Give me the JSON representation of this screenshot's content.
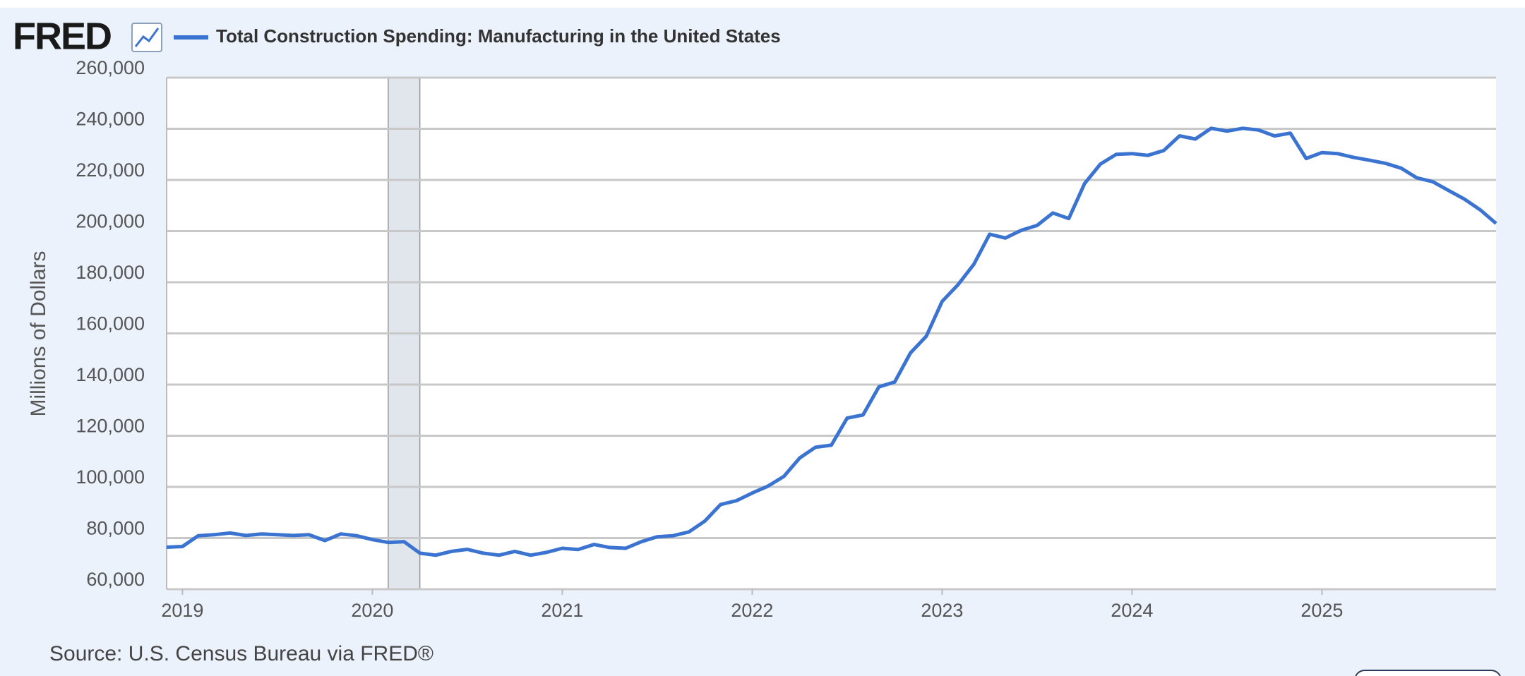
{
  "logo": "FRED",
  "chart_data": {
    "type": "line",
    "y_label": "Millions of Dollars",
    "source": "Source: U.S. Census Bureau via FRED®",
    "x": [
      "2018-12",
      "2019-01",
      "2019-02",
      "2019-03",
      "2019-04",
      "2019-05",
      "2019-06",
      "2019-07",
      "2019-08",
      "2019-09",
      "2019-10",
      "2019-11",
      "2019-12",
      "2020-01",
      "2020-02",
      "2020-03",
      "2020-04",
      "2020-05",
      "2020-06",
      "2020-07",
      "2020-08",
      "2020-09",
      "2020-10",
      "2020-11",
      "2020-12",
      "2021-01",
      "2021-02",
      "2021-03",
      "2021-04",
      "2021-05",
      "2021-06",
      "2021-07",
      "2021-08",
      "2021-09",
      "2021-10",
      "2021-11",
      "2021-12",
      "2022-01",
      "2022-02",
      "2022-03",
      "2022-04",
      "2022-05",
      "2022-06",
      "2022-07",
      "2022-08",
      "2022-09",
      "2022-10",
      "2022-11",
      "2022-12",
      "2023-01",
      "2023-02",
      "2023-03",
      "2023-04",
      "2023-05",
      "2023-06",
      "2023-07",
      "2023-08",
      "2023-09",
      "2023-10",
      "2023-11",
      "2023-12",
      "2024-01",
      "2024-02",
      "2024-03",
      "2024-04",
      "2024-05",
      "2024-06",
      "2024-07",
      "2024-08",
      "2024-09",
      "2024-10",
      "2024-11",
      "2024-12",
      "2025-01",
      "2025-02",
      "2025-03",
      "2025-04",
      "2025-05",
      "2025-06",
      "2025-07",
      "2025-08",
      "2025-09",
      "2025-10",
      "2025-11",
      "2025-12"
    ],
    "series": [
      {
        "name": "Total Construction Spending: Manufacturing in the United States",
        "color": "#3b73d0",
        "values": [
          76400,
          76700,
          80900,
          81300,
          82000,
          81000,
          81600,
          81300,
          81000,
          81300,
          79000,
          81600,
          80900,
          79400,
          78300,
          78600,
          74100,
          73300,
          74800,
          75600,
          74100,
          73300,
          74800,
          73300,
          74400,
          76000,
          75500,
          77500,
          76300,
          76000,
          78600,
          80500,
          80900,
          82400,
          86600,
          93100,
          94600,
          97600,
          100300,
          104100,
          111300,
          115500,
          116300,
          126900,
          128100,
          139100,
          141000,
          152400,
          158900,
          172500,
          179000,
          187000,
          198800,
          197300,
          200300,
          202200,
          207100,
          204900,
          218600,
          226200,
          230000,
          230300,
          229600,
          231500,
          237200,
          236000,
          240200,
          239100,
          240200,
          239500,
          237200,
          238300,
          228400,
          230700,
          230300,
          228800,
          227700,
          226500,
          224600,
          220800,
          219300,
          215900,
          212500,
          208300,
          203000
        ]
      }
    ],
    "recessions": [
      {
        "start": "2020-02",
        "end": "2020-04"
      }
    ],
    "xlim": [
      "2018-12",
      "2025-12"
    ],
    "xticks": [
      {
        "value": "2019-01",
        "label": "2019"
      },
      {
        "value": "2020-01",
        "label": "2020"
      },
      {
        "value": "2021-01",
        "label": "2021"
      },
      {
        "value": "2022-01",
        "label": "2022"
      },
      {
        "value": "2023-01",
        "label": "2023"
      },
      {
        "value": "2024-01",
        "label": "2024"
      },
      {
        "value": "2025-01",
        "label": "2025"
      }
    ],
    "ylim": [
      60000,
      260000
    ],
    "yticks": [
      {
        "value": 60000,
        "label": "60,000"
      },
      {
        "value": 80000,
        "label": "80,000"
      },
      {
        "value": 100000,
        "label": "100,000"
      },
      {
        "value": 120000,
        "label": "120,000"
      },
      {
        "value": 140000,
        "label": "140,000"
      },
      {
        "value": 160000,
        "label": "160,000"
      },
      {
        "value": 180000,
        "label": "180,000"
      },
      {
        "value": 200000,
        "label": "200,000"
      },
      {
        "value": 220000,
        "label": "220,000"
      },
      {
        "value": 240000,
        "label": "240,000"
      },
      {
        "value": 260000,
        "label": "260,000"
      }
    ],
    "grid": true
  }
}
